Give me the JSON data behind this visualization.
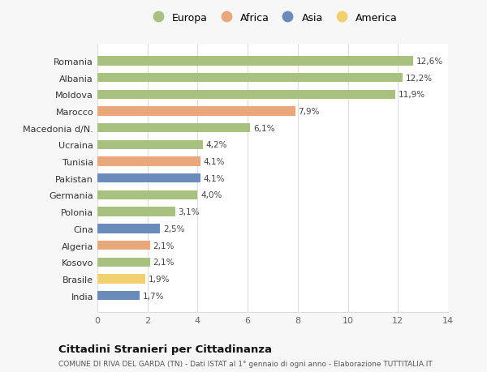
{
  "countries": [
    "Romania",
    "Albania",
    "Moldova",
    "Marocco",
    "Macedonia d/N.",
    "Ucraina",
    "Tunisia",
    "Pakistan",
    "Germania",
    "Polonia",
    "Cina",
    "Algeria",
    "Kosovo",
    "Brasile",
    "India"
  ],
  "values": [
    12.6,
    12.2,
    11.9,
    7.9,
    6.1,
    4.2,
    4.1,
    4.1,
    4.0,
    3.1,
    2.5,
    2.1,
    2.1,
    1.9,
    1.7
  ],
  "labels": [
    "12,6%",
    "12,2%",
    "11,9%",
    "7,9%",
    "6,1%",
    "4,2%",
    "4,1%",
    "4,1%",
    "4,0%",
    "3,1%",
    "2,5%",
    "2,1%",
    "2,1%",
    "1,9%",
    "1,7%"
  ],
  "colors": [
    "#a8c080",
    "#a8c080",
    "#a8c080",
    "#e8a87c",
    "#a8c080",
    "#a8c080",
    "#e8a87c",
    "#6b8cba",
    "#a8c080",
    "#a8c080",
    "#6b8cba",
    "#e8a87c",
    "#a8c080",
    "#f0d070",
    "#6b8cba"
  ],
  "legend_labels": [
    "Europa",
    "Africa",
    "Asia",
    "America"
  ],
  "legend_colors": [
    "#a8c080",
    "#e8a87c",
    "#6b8cba",
    "#f0d070"
  ],
  "xlim": [
    0,
    14
  ],
  "xticks": [
    0,
    2,
    4,
    6,
    8,
    10,
    12,
    14
  ],
  "title": "Cittadini Stranieri per Cittadinanza",
  "subtitle": "COMUNE DI RIVA DEL GARDA (TN) - Dati ISTAT al 1° gennaio di ogni anno - Elaborazione TUTTITALIA.IT",
  "bg_color": "#f7f7f7",
  "plot_bg_color": "#ffffff",
  "grid_color": "#dddddd"
}
